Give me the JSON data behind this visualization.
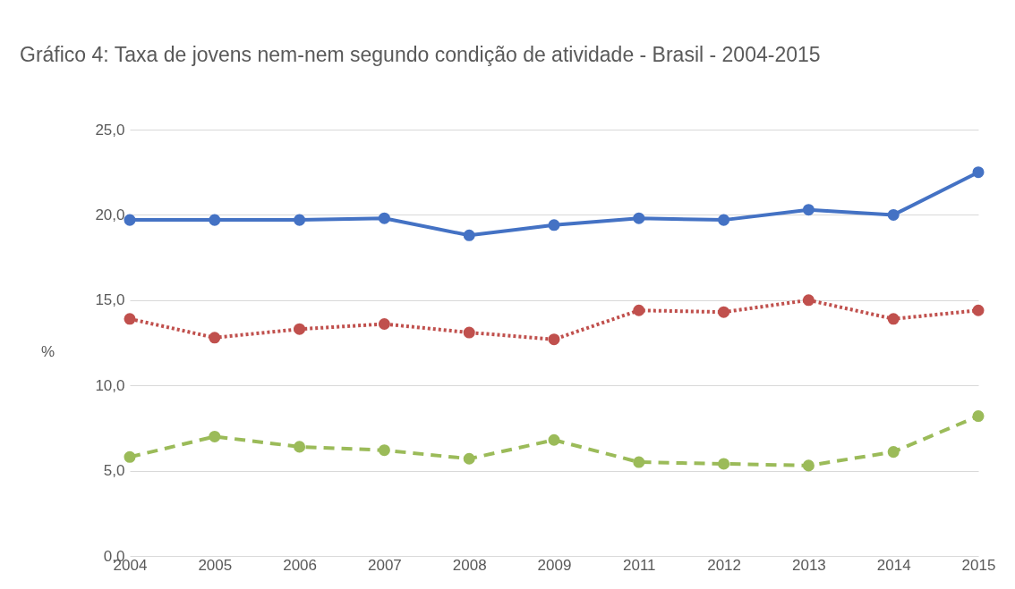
{
  "chart_data": {
    "type": "line",
    "title": "Gráfico 4: Taxa de jovens nem-nem segundo condição de atividade - Brasil - 2004-2015",
    "ylabel": "%",
    "categories": [
      "2004",
      "2005",
      "2006",
      "2007",
      "2008",
      "2009",
      "2011",
      "2012",
      "2013",
      "2014",
      "2015"
    ],
    "series": [
      {
        "color": "#4472c4",
        "line_style": "solid",
        "values": [
          19.7,
          19.7,
          19.7,
          19.8,
          18.8,
          19.4,
          19.8,
          19.7,
          20.3,
          20.0,
          22.5
        ]
      },
      {
        "color": "#c0504d",
        "line_style": "dotted",
        "values": [
          13.9,
          12.8,
          13.3,
          13.6,
          13.1,
          12.7,
          14.4,
          14.3,
          15.0,
          13.9,
          14.4
        ]
      },
      {
        "color": "#9bbb59",
        "line_style": "dashed",
        "values": [
          5.8,
          7.0,
          6.4,
          6.2,
          5.7,
          6.8,
          5.5,
          5.4,
          5.3,
          6.1,
          8.2
        ]
      }
    ],
    "ylim": [
      0,
      25
    ],
    "yticks": [
      {
        "value": 0,
        "label": "0,0"
      },
      {
        "value": 5,
        "label": "5,0"
      },
      {
        "value": 10,
        "label": "10,0"
      },
      {
        "value": 15,
        "label": "15,0"
      },
      {
        "value": 20,
        "label": "20,0"
      },
      {
        "value": 25,
        "label": "25,0"
      }
    ],
    "grid": "y",
    "marker": "circle"
  }
}
